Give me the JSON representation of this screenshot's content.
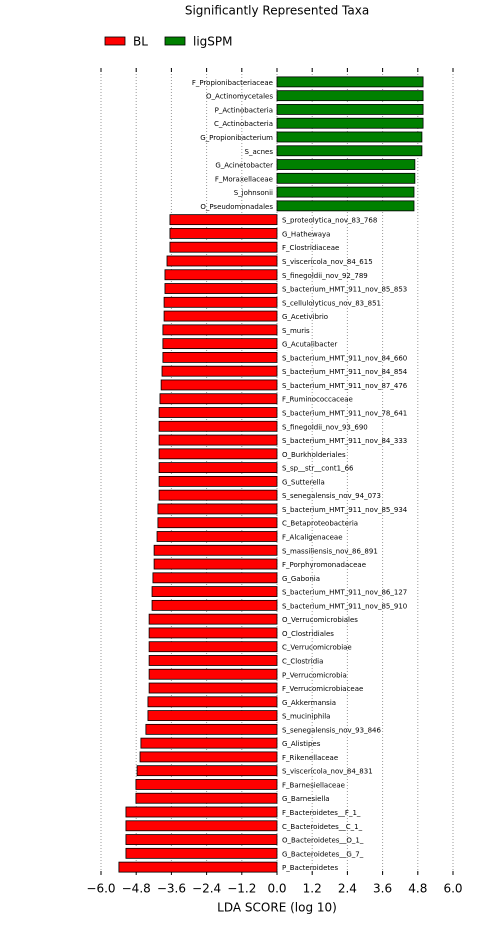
{
  "chart_data": {
    "type": "bar",
    "orientation": "horizontal",
    "title": "Significantly Represented Taxa",
    "xlabel": "LDA SCORE (log 10)",
    "xlim": [
      -6,
      6
    ],
    "xticks": [
      {
        "value": -6,
        "label": "−6.0"
      },
      {
        "value": -4.8,
        "label": "−4.8"
      },
      {
        "value": -3.6,
        "label": "−3.6"
      },
      {
        "value": -2.4,
        "label": "−2.4"
      },
      {
        "value": -1.2,
        "label": "−1.2"
      },
      {
        "value": 0,
        "label": "0.0"
      },
      {
        "value": 1.2,
        "label": "1.2"
      },
      {
        "value": 2.4,
        "label": "2.4"
      },
      {
        "value": 3.6,
        "label": "3.6"
      },
      {
        "value": 4.8,
        "label": "4.8"
      },
      {
        "value": 6,
        "label": "6.0"
      }
    ],
    "grid": true,
    "series": [
      {
        "name": "ligSPM",
        "color": "#008000",
        "categories": [
          "F_Propionibacteriaceae",
          "O_Actinomycetales",
          "P_Actinobacteria",
          "C_Actinobacteria",
          "G_Propionibacterium",
          "S_acnes",
          "G_Acinetobacter",
          "F_Moraxellaceae",
          "S_johnsonii",
          "O_Pseudomonadales"
        ],
        "values": [
          4.98,
          4.98,
          4.98,
          4.98,
          4.94,
          4.94,
          4.7,
          4.7,
          4.67,
          4.67
        ]
      },
      {
        "name": "BL",
        "color": "#ff0000",
        "categories": [
          "S_proteolytica_nov_83_768",
          "G_Hathewaya",
          "F_Clostridiaceae",
          "S_viscericola_nov_84_615",
          "S_finegoldii_nov_92_789",
          "S_bacterium_HMT_911_nov_85_853",
          "S_cellulolyticus_nov_83_851",
          "G_Acetivibrio",
          "S_muris",
          "G_Acutalibacter",
          "S_bacterium_HMT_911_nov_84_660",
          "S_bacterium_HMT_911_nov_84_854",
          "S_bacterium_HMT_911_nov_87_476",
          "F_Ruminococcaceae",
          "S_bacterium_HMT_911_nov_78_641",
          "S_finegoldii_nov_93_690",
          "S_bacterium_HMT_911_nov_84_333",
          "O_Burkholderiales",
          "S_sp__str__cont1_66",
          "G_Sutterella",
          "S_senegalensis_nov_94_073",
          "S_bacterium_HMT_911_nov_85_934",
          "C_Betaproteobacteria",
          "F_Alcaligenaceae",
          "S_massiliensis_nov_86_891",
          "F_Porphyromonadaceae",
          "G_Gabonia",
          "S_bacterium_HMT_911_nov_86_127",
          "S_bacterium_HMT_911_nov_85_910",
          "O_Verrucomicrobiales",
          "O_Clostridiales",
          "C_Verrucomicrobiae",
          "C_Clostridia",
          "P_Verrucomicrobia",
          "F_Verrucomicrobiaceae",
          "G_Akkermansia",
          "S_muciniphila",
          "S_senegalensis_nov_93_846",
          "G_Alistipes",
          "F_Rikenellaceae",
          "S_viscericola_nov_84_831",
          "F_Barnesiellaceae",
          "G_Barnesiella",
          "F_Bacteroidetes__F_1_",
          "C_Bacteroidetes__C_1_",
          "O_Bacteroidetes__O_1_",
          "G_Bacteroidetes__G_7_",
          "P_Bacteroidetes"
        ],
        "values": [
          -3.65,
          -3.65,
          -3.65,
          -3.75,
          -3.82,
          -3.82,
          -3.85,
          -3.85,
          -3.89,
          -3.89,
          -3.89,
          -3.92,
          -3.95,
          -3.99,
          -4.02,
          -4.02,
          -4.02,
          -4.02,
          -4.02,
          -4.02,
          -4.02,
          -4.06,
          -4.06,
          -4.09,
          -4.19,
          -4.19,
          -4.23,
          -4.26,
          -4.26,
          -4.36,
          -4.36,
          -4.36,
          -4.36,
          -4.36,
          -4.36,
          -4.4,
          -4.4,
          -4.47,
          -4.64,
          -4.67,
          -4.77,
          -4.81,
          -4.81,
          -5.15,
          -5.15,
          -5.15,
          -5.15,
          -5.39
        ]
      }
    ],
    "legend": "top-left"
  }
}
